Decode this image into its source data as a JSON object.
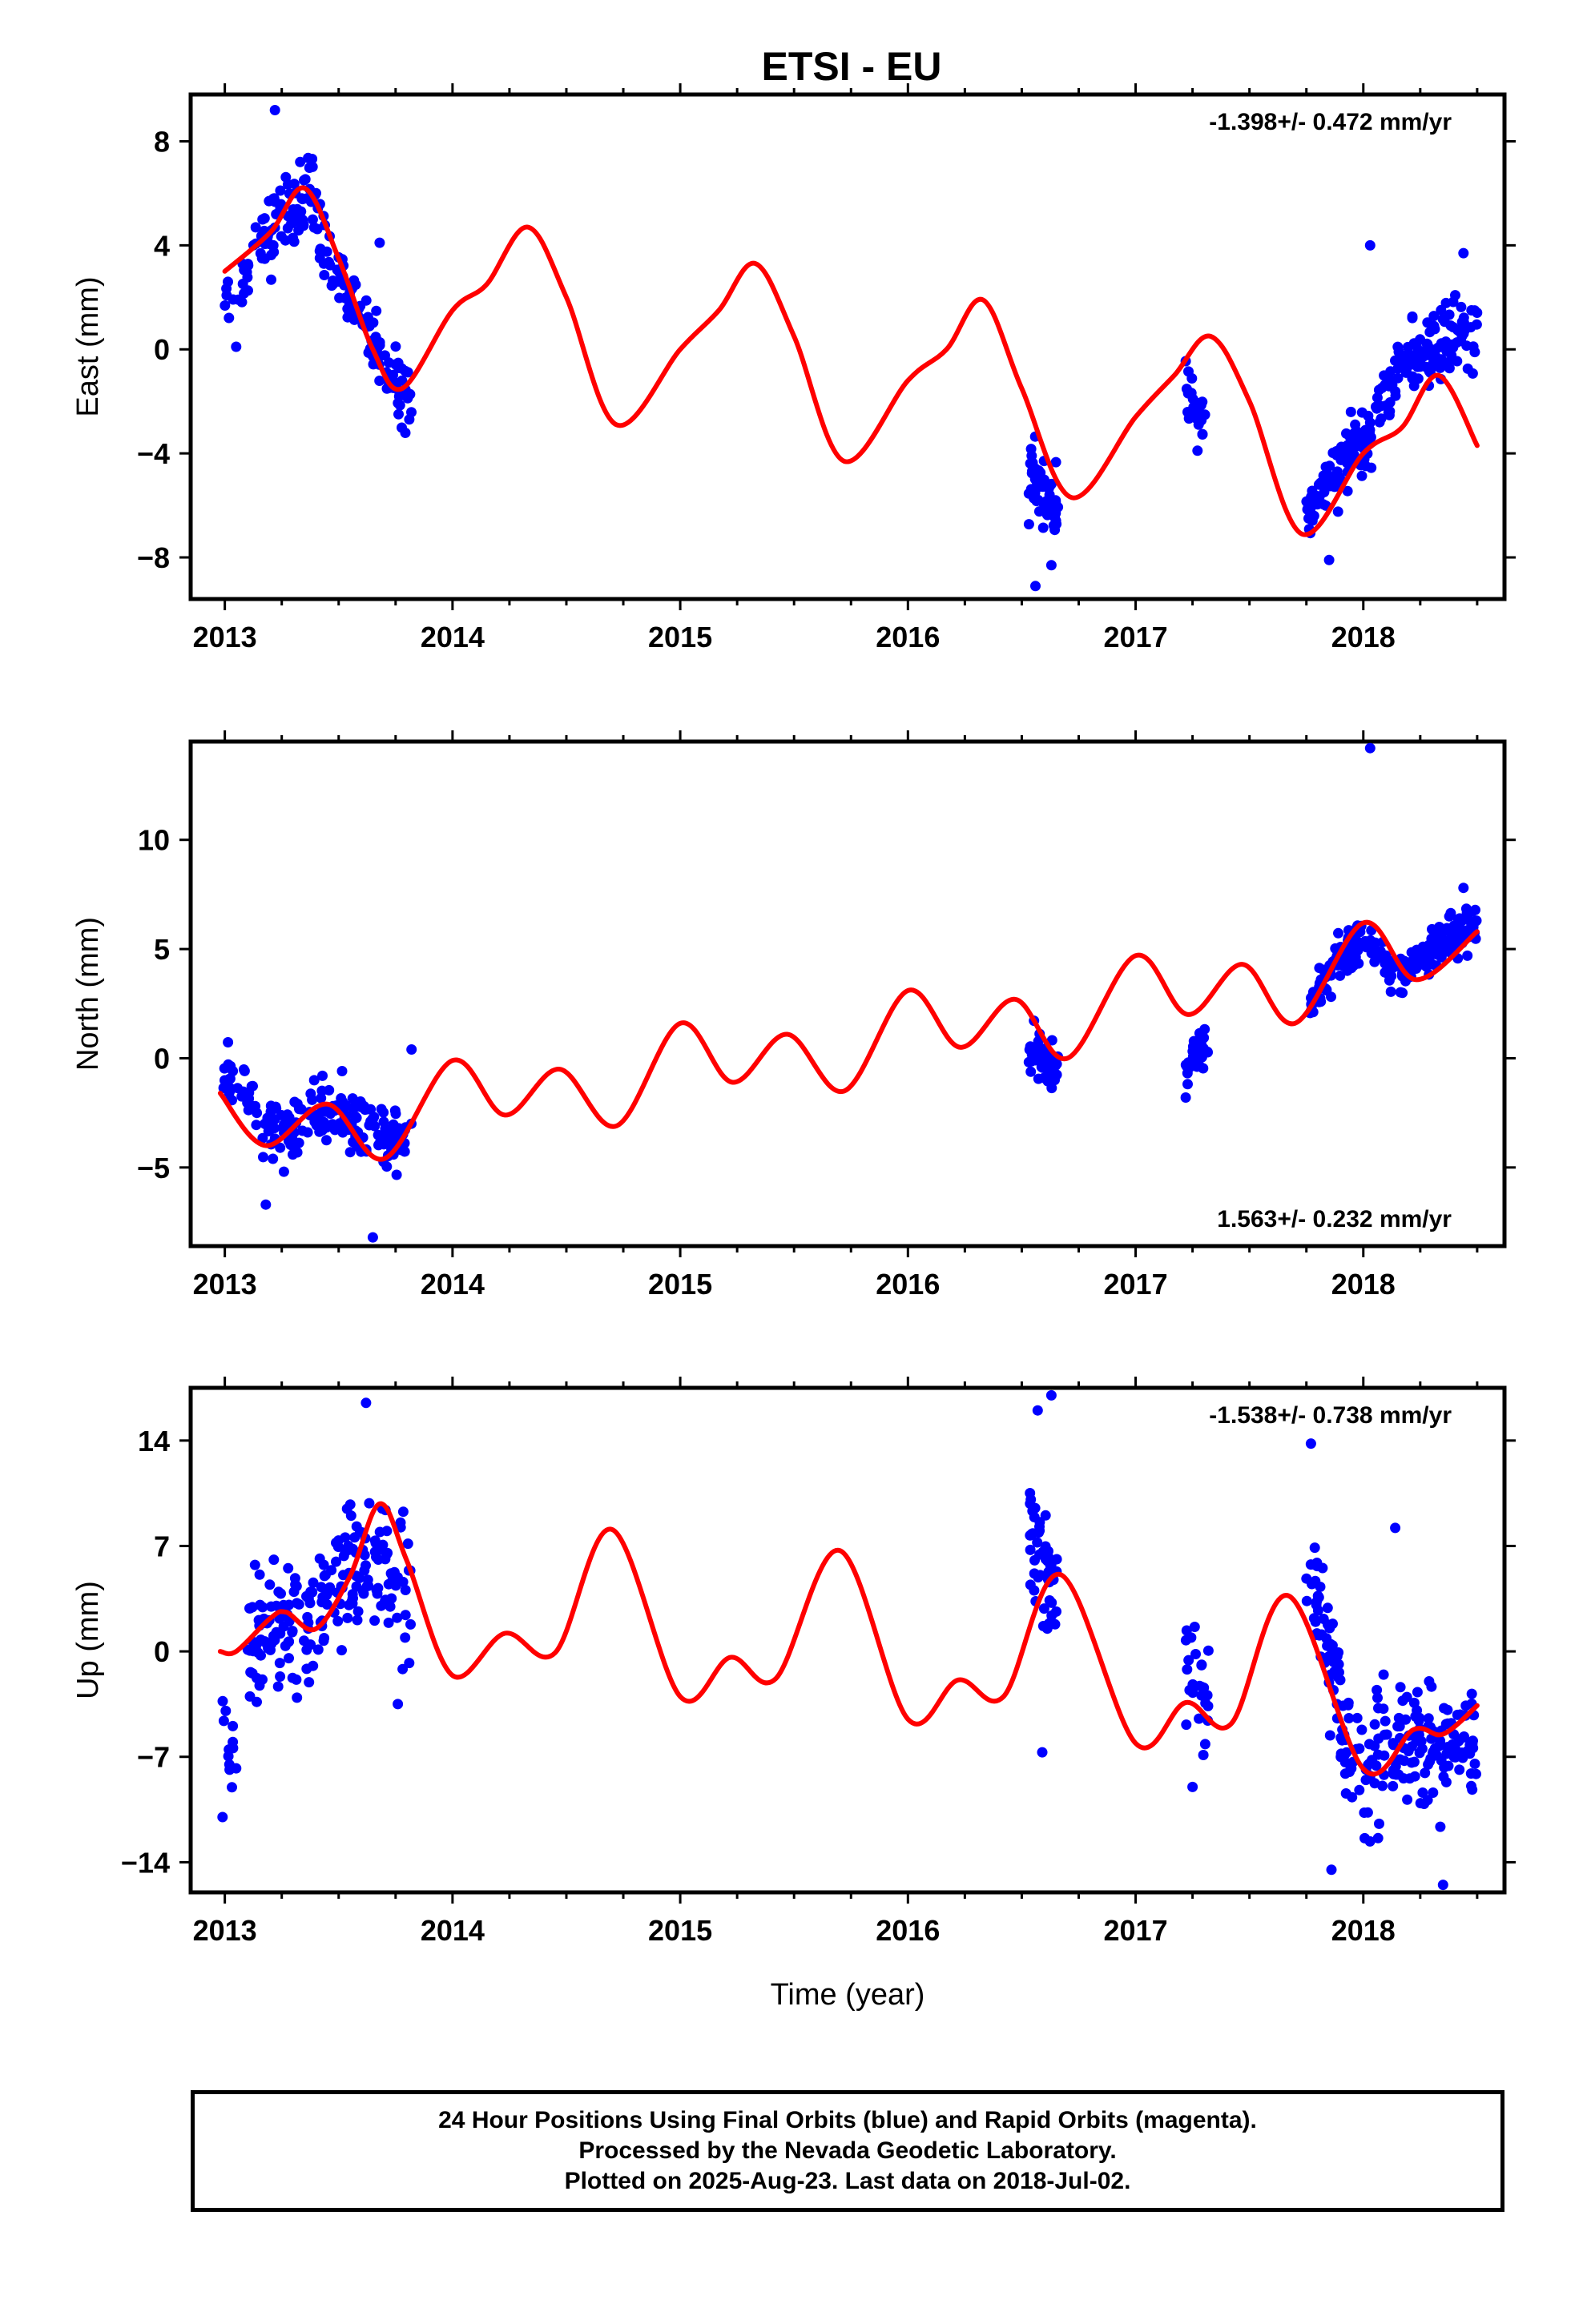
{
  "chart_data": [
    {
      "type": "scatter",
      "panel": "east",
      "title": "ETSI - EU",
      "ylabel": "East (mm)",
      "xlabel": "",
      "annotation": "-1.398+/- 0.472 mm/yr",
      "xlim": [
        2012.85,
        2018.62
      ],
      "ylim": [
        -9.6,
        9.8
      ],
      "xticks": [
        2013,
        2014,
        2015,
        2016,
        2017,
        2018
      ],
      "yticks": [
        -8,
        -4,
        0,
        4,
        8
      ],
      "ytick_labels": [
        "−8",
        "−4",
        "0",
        "4",
        "8"
      ],
      "grid": false,
      "data_color": "#0000ff",
      "fit_color": "#ff0000",
      "data_clusters": [
        {
          "x": [
            2012.98,
            2013.1
          ],
          "y": [
            1.5,
            3.0
          ],
          "spread": 1.0,
          "n": 14
        },
        {
          "x": [
            2013.1,
            2013.4
          ],
          "y": [
            3.5,
            6.5
          ],
          "spread": 1.4,
          "n": 70
        },
        {
          "x": [
            2013.4,
            2013.55
          ],
          "y": [
            4.5,
            2.0
          ],
          "spread": 1.3,
          "n": 35
        },
        {
          "x": [
            2013.55,
            2013.82
          ],
          "y": [
            2.0,
            -2.3
          ],
          "spread": 1.1,
          "n": 75
        },
        {
          "x": [
            2016.53,
            2016.66
          ],
          "y": [
            -4.6,
            -6.2
          ],
          "spread": 1.1,
          "n": 55
        },
        {
          "x": [
            2017.22,
            2017.32
          ],
          "y": [
            -1.8,
            -3.4
          ],
          "spread": 0.9,
          "n": 28
        },
        {
          "x": [
            2017.75,
            2017.98
          ],
          "y": [
            -6.4,
            -3.5
          ],
          "spread": 1.0,
          "n": 80
        },
        {
          "x": [
            2017.98,
            2018.15
          ],
          "y": [
            -4.0,
            -1.2
          ],
          "spread": 1.1,
          "n": 40
        },
        {
          "x": [
            2018.15,
            2018.5
          ],
          "y": [
            -0.8,
            1.0
          ],
          "spread": 1.3,
          "n": 110
        }
      ],
      "data_outliers": [
        {
          "x": 2013.22,
          "y": 9.2
        },
        {
          "x": 2013.68,
          "y": 4.1
        },
        {
          "x": 2018.03,
          "y": 4.0
        },
        {
          "x": 2016.56,
          "y": -9.1
        },
        {
          "x": 2017.85,
          "y": -8.1
        },
        {
          "x": 2013.05,
          "y": 0.1
        },
        {
          "x": 2016.63,
          "y": -8.3
        },
        {
          "x": 2018.44,
          "y": 3.7
        }
      ],
      "fit_x": [
        2013.0,
        2013.2,
        2013.35,
        2013.5,
        2013.65,
        2013.78,
        2014.0,
        2014.15,
        2014.33,
        2014.5,
        2014.72,
        2015.0,
        2015.17,
        2015.33,
        2015.5,
        2015.72,
        2016.0,
        2016.17,
        2016.33,
        2016.5,
        2016.72,
        2017.0,
        2017.17,
        2017.33,
        2017.5,
        2017.73,
        2018.0,
        2018.17,
        2018.33,
        2018.5
      ],
      "fit_y": [
        3.0,
        4.5,
        6.2,
        3.5,
        0.0,
        -1.5,
        1.5,
        2.5,
        4.7,
        2.0,
        -2.9,
        0.0,
        1.5,
        3.3,
        0.5,
        -4.3,
        -1.2,
        0.0,
        1.9,
        -1.5,
        -5.7,
        -2.6,
        -1.0,
        0.5,
        -2.0,
        -7.1,
        -4.0,
        -3.0,
        -1.0,
        -3.7
      ]
    },
    {
      "type": "scatter",
      "panel": "north",
      "title": "",
      "ylabel": "North (mm)",
      "xlabel": "",
      "annotation": "1.563+/- 0.232 mm/yr",
      "xlim": [
        2012.85,
        2018.62
      ],
      "ylim": [
        -8.6,
        14.5
      ],
      "xticks": [
        2013,
        2014,
        2015,
        2016,
        2017,
        2018
      ],
      "yticks": [
        -5,
        0,
        5,
        10
      ],
      "ytick_labels": [
        "−5",
        "0",
        "5",
        "10"
      ],
      "grid": false,
      "data_color": "#0000ff",
      "fit_color": "#ff0000",
      "data_clusters": [
        {
          "x": [
            2012.98,
            2013.3
          ],
          "y": [
            -1.0,
            -3.8
          ],
          "spread": 1.2,
          "n": 70
        },
        {
          "x": [
            2013.3,
            2013.55
          ],
          "y": [
            -3.0,
            -2.2
          ],
          "spread": 1.3,
          "n": 60
        },
        {
          "x": [
            2013.55,
            2013.82
          ],
          "y": [
            -3.0,
            -3.8
          ],
          "spread": 1.3,
          "n": 70
        },
        {
          "x": [
            2016.53,
            2016.66
          ],
          "y": [
            0.3,
            -0.5
          ],
          "spread": 0.9,
          "n": 50
        },
        {
          "x": [
            2017.22,
            2017.32
          ],
          "y": [
            -0.5,
            0.6
          ],
          "spread": 0.8,
          "n": 28
        },
        {
          "x": [
            2017.75,
            2017.98
          ],
          "y": [
            2.5,
            5.5
          ],
          "spread": 1.0,
          "n": 85
        },
        {
          "x": [
            2017.98,
            2018.18
          ],
          "y": [
            5.5,
            3.8
          ],
          "spread": 0.8,
          "n": 45
        },
        {
          "x": [
            2018.18,
            2018.5
          ],
          "y": [
            4.0,
            6.3
          ],
          "spread": 0.9,
          "n": 110
        }
      ],
      "data_outliers": [
        {
          "x": 2018.03,
          "y": 14.2
        },
        {
          "x": 2013.65,
          "y": -8.2
        },
        {
          "x": 2013.18,
          "y": -6.7
        },
        {
          "x": 2017.22,
          "y": -1.8
        },
        {
          "x": 2013.82,
          "y": 0.4
        },
        {
          "x": 2018.44,
          "y": 7.8
        }
      ],
      "fit_x": [
        2012.98,
        2013.18,
        2013.45,
        2013.7,
        2014.0,
        2014.23,
        2014.47,
        2014.72,
        2015.0,
        2015.23,
        2015.47,
        2015.72,
        2016.0,
        2016.23,
        2016.47,
        2016.7,
        2017.0,
        2017.23,
        2017.47,
        2017.7,
        2018.0,
        2018.23,
        2018.5
      ],
      "fit_y": [
        -1.6,
        -4.0,
        -2.1,
        -4.6,
        -0.1,
        -2.6,
        -0.5,
        -3.1,
        1.6,
        -1.1,
        1.1,
        -1.5,
        3.1,
        0.5,
        2.7,
        0.0,
        4.7,
        2.0,
        4.3,
        1.6,
        6.2,
        3.6,
        5.8
      ]
    },
    {
      "type": "scatter",
      "panel": "up",
      "title": "",
      "ylabel": "Up (mm)",
      "xlabel": "Time (year)",
      "annotation": "-1.538+/- 0.738 mm/yr",
      "xlim": [
        2012.85,
        2018.62
      ],
      "ylim": [
        -16.0,
        17.5
      ],
      "xticks": [
        2013,
        2014,
        2015,
        2016,
        2017,
        2018
      ],
      "yticks": [
        -14,
        -7,
        0,
        7,
        14
      ],
      "ytick_labels": [
        "−14",
        "−7",
        "0",
        "7",
        "14"
      ],
      "grid": false,
      "data_color": "#0000ff",
      "fit_color": "#ff0000",
      "data_clusters": [
        {
          "x": [
            2012.98,
            2013.05
          ],
          "y": [
            -5.0,
            -8.0
          ],
          "spread": 2.5,
          "n": 12
        },
        {
          "x": [
            2013.1,
            2013.4
          ],
          "y": [
            1.0,
            1.5
          ],
          "spread": 4.0,
          "n": 90
        },
        {
          "x": [
            2013.4,
            2013.62
          ],
          "y": [
            2.0,
            6.0
          ],
          "spread": 4.0,
          "n": 65
        },
        {
          "x": [
            2013.62,
            2013.82
          ],
          "y": [
            7.0,
            4.0
          ],
          "spread": 4.0,
          "n": 50
        },
        {
          "x": [
            2016.53,
            2016.66
          ],
          "y": [
            8.0,
            3.5
          ],
          "spread": 3.5,
          "n": 50
        },
        {
          "x": [
            2017.22,
            2017.32
          ],
          "y": [
            -1.0,
            -3.5
          ],
          "spread": 3.0,
          "n": 28
        },
        {
          "x": [
            2017.75,
            2017.9
          ],
          "y": [
            5.0,
            -3.0
          ],
          "spread": 3.5,
          "n": 50
        },
        {
          "x": [
            2017.9,
            2018.05
          ],
          "y": [
            -6.0,
            -9.0
          ],
          "spread": 3.5,
          "n": 40
        },
        {
          "x": [
            2018.05,
            2018.5
          ],
          "y": [
            -6.0,
            -6.0
          ],
          "spread": 3.5,
          "n": 130
        }
      ],
      "data_outliers": [
        {
          "x": 2013.62,
          "y": 16.5
        },
        {
          "x": 2016.63,
          "y": 17.0
        },
        {
          "x": 2016.57,
          "y": 16.0
        },
        {
          "x": 2017.77,
          "y": 13.8
        },
        {
          "x": 2012.99,
          "y": -11.0
        },
        {
          "x": 2017.86,
          "y": -14.5
        },
        {
          "x": 2018.35,
          "y": -15.5
        },
        {
          "x": 2016.59,
          "y": -6.7
        },
        {
          "x": 2017.25,
          "y": -9.0
        },
        {
          "x": 2013.76,
          "y": -3.5
        },
        {
          "x": 2018.14,
          "y": 8.2
        }
      ],
      "fit_x": [
        2012.98,
        2013.05,
        2013.2,
        2013.27,
        2013.4,
        2013.55,
        2013.68,
        2013.8,
        2014.0,
        2014.23,
        2014.45,
        2014.7,
        2015.0,
        2015.22,
        2015.42,
        2015.7,
        2016.0,
        2016.22,
        2016.42,
        2016.67,
        2017.0,
        2017.22,
        2017.42,
        2017.67,
        2018.0,
        2018.22,
        2018.35,
        2018.5
      ],
      "fit_y": [
        0.0,
        0.0,
        2.2,
        2.6,
        1.5,
        5.0,
        9.8,
        6.0,
        -1.6,
        1.2,
        -0.1,
        8.1,
        -3.0,
        -0.4,
        -1.8,
        6.7,
        -4.5,
        -1.9,
        -3.0,
        5.1,
        -6.1,
        -3.4,
        -4.8,
        3.7,
        -7.8,
        -5.2,
        -5.5,
        -3.6
      ]
    }
  ],
  "footer": {
    "line1": "24 Hour Positions Using Final Orbits (blue) and Rapid Orbits (magenta).",
    "line2": "Processed by the Nevada Geodetic Laboratory.",
    "line3": "Plotted on 2025-Aug-23. Last data on 2018-Jul-02."
  }
}
